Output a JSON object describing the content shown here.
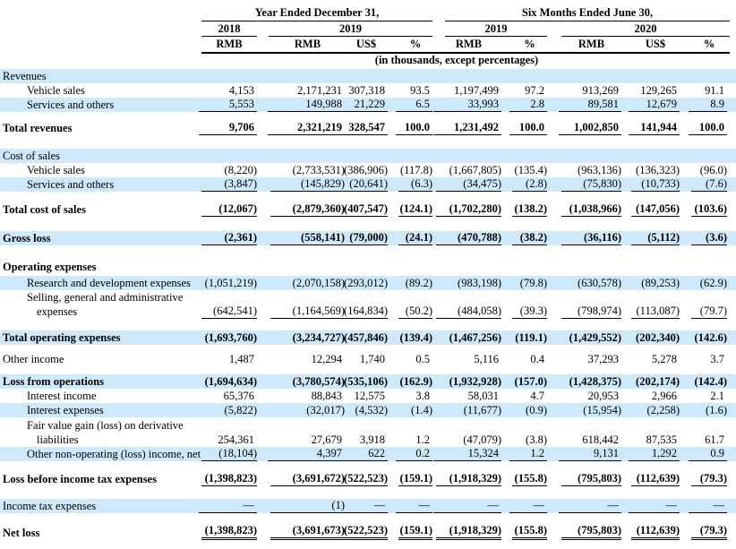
{
  "table": {
    "header": {
      "group1": "Year Ended December 31,",
      "group2": "Six Months Ended June 30,",
      "years": [
        "2018",
        "2019",
        "2019",
        "2020"
      ],
      "currencies": [
        "RMB",
        "RMB",
        "US$",
        "%",
        "RMB",
        "%",
        "RMB",
        "US$",
        "%"
      ],
      "note": "(in thousands, except percentages)"
    },
    "rows": [
      {
        "label": "Revenues",
        "indent": 0,
        "bold": false,
        "bg": "blue",
        "underline": "none",
        "gap": 0,
        "values": [
          "",
          "",
          "",
          "",
          "",
          "",
          "",
          "",
          ""
        ]
      },
      {
        "label": "Vehicle sales",
        "indent": 1,
        "bold": false,
        "bg": "white",
        "underline": "none",
        "gap": 0,
        "values": [
          "4,153",
          "2,171,231",
          "307,318",
          "93.5",
          "1,197,499",
          "97.2",
          "913,269",
          "129,265",
          "91.1"
        ]
      },
      {
        "label": "Services and others",
        "indent": 1,
        "bold": false,
        "bg": "blue",
        "underline": "single",
        "gap": 0,
        "values": [
          "5,553",
          "149,988",
          "21,229",
          "6.5",
          "33,993",
          "2.8",
          "89,581",
          "12,679",
          "8.9"
        ]
      },
      {
        "label": "Total revenues",
        "indent": 0,
        "bold": true,
        "bg": "white",
        "underline": "single",
        "gap": 10,
        "values": [
          "9,706",
          "2,321,219",
          "328,547",
          "100.0",
          "1,231,492",
          "100.0",
          "1,002,850",
          "141,944",
          "100.0"
        ]
      },
      {
        "label": "Cost of sales",
        "indent": 0,
        "bold": false,
        "bg": "blue",
        "underline": "none",
        "gap": 15,
        "values": [
          "",
          "",
          "",
          "",
          "",
          "",
          "",
          "",
          ""
        ]
      },
      {
        "label": "Vehicle sales",
        "indent": 1,
        "bold": false,
        "bg": "white",
        "underline": "none",
        "gap": 0,
        "values": [
          "(8,220)",
          "(2,733,531)",
          "(386,906)",
          "(117.8)",
          "(1,667,805)",
          "(135.4)",
          "(963,136)",
          "(136,323)",
          "(96.0)"
        ]
      },
      {
        "label": "Services and others",
        "indent": 1,
        "bold": false,
        "bg": "blue",
        "underline": "single",
        "gap": 0,
        "values": [
          "(3,847)",
          "(145,829)",
          "(20,641)",
          "(6.3)",
          "(34,475)",
          "(2.8)",
          "(75,830)",
          "(10,733)",
          "(7.6)"
        ]
      },
      {
        "label": "Total cost of sales",
        "indent": 0,
        "bold": true,
        "bg": "white",
        "underline": "single",
        "gap": 12,
        "values": [
          "(12,067)",
          "(2,879,360)",
          "(407,547)",
          "(124.1)",
          "(1,702,280)",
          "(138.2)",
          "(1,038,966)",
          "(147,056)",
          "(103.6)"
        ]
      },
      {
        "label": "Gross loss",
        "indent": 0,
        "bold": true,
        "bg": "blue",
        "underline": "single",
        "gap": 16,
        "values": [
          "(2,361)",
          "(558,141)",
          "(79,000)",
          "(24.1)",
          "(470,788)",
          "(38.2)",
          "(36,116)",
          "(5,112)",
          "(3.6)"
        ]
      },
      {
        "label": "Operating expenses",
        "indent": 0,
        "bold": true,
        "bg": "white",
        "underline": "none",
        "gap": 16,
        "values": [
          "",
          "",
          "",
          "",
          "",
          "",
          "",
          "",
          ""
        ]
      },
      {
        "label": "Research and development expenses",
        "indent": 1,
        "bold": false,
        "bg": "blue",
        "underline": "none",
        "gap": 2,
        "values": [
          "(1,051,219)",
          "(2,070,158)",
          "(293,012)",
          "(89.2)",
          "(983,198)",
          "(79.8)",
          "(630,578)",
          "(89,253)",
          "(62.9)"
        ]
      },
      {
        "label": "Selling, general and administrative",
        "label2": "expenses",
        "indent": 1,
        "bold": false,
        "bg": "white",
        "underline": "single",
        "gap": 0,
        "values": [
          "(642,541)",
          "(1,164,569)",
          "(164,834)",
          "(50.2)",
          "(484,058)",
          "(39.3)",
          "(798,974)",
          "(113,087)",
          "(79.7)"
        ]
      },
      {
        "label": "Total operating expenses",
        "indent": 0,
        "bold": true,
        "bg": "blue",
        "underline": "none",
        "gap": 13,
        "values": [
          "(1,693,760)",
          "(3,234,727)",
          "(457,846)",
          "(139.4)",
          "(1,467,256)",
          "(119.1)",
          "(1,429,552)",
          "(202,340)",
          "(142.6)"
        ]
      },
      {
        "label": "Other income",
        "indent": 0,
        "bold": false,
        "bg": "white",
        "underline": "none",
        "gap": 8,
        "values": [
          "1,487",
          "12,294",
          "1,740",
          "0.5",
          "5,116",
          "0.4",
          "37,293",
          "5,278",
          "3.7"
        ]
      },
      {
        "label": "Loss from operations",
        "indent": 0,
        "bold": true,
        "bg": "blue",
        "underline": "none",
        "gap": 9,
        "values": [
          "(1,694,634)",
          "(3,780,574)",
          "(535,106)",
          "(162.9)",
          "(1,932,928)",
          "(157.0)",
          "(1,428,375)",
          "(202,174)",
          "(142.4)"
        ]
      },
      {
        "label": "Interest income",
        "indent": 1,
        "bold": false,
        "bg": "white",
        "underline": "none",
        "gap": 0,
        "values": [
          "65,376",
          "88,843",
          "12,575",
          "3.8",
          "58,031",
          "4.7",
          "20,953",
          "2,966",
          "2.1"
        ]
      },
      {
        "label": "Interest expenses",
        "indent": 1,
        "bold": false,
        "bg": "blue",
        "underline": "none",
        "gap": 0,
        "values": [
          "(5,822)",
          "(32,017)",
          "(4,532)",
          "(1.4)",
          "(11,677)",
          "(0.9)",
          "(15,954)",
          "(2,258)",
          "(1.6)"
        ]
      },
      {
        "label": "Fair value gain (loss) on derivative",
        "label2": "liabilities",
        "indent": 1,
        "bold": false,
        "bg": "white",
        "underline": "none",
        "gap": 1,
        "values": [
          "254,361",
          "27,679",
          "3,918",
          "1.2",
          "(47,079)",
          "(3.8)",
          "618,442",
          "87,535",
          "61.7"
        ]
      },
      {
        "label": "Other non-operating (loss) income, net",
        "indent": 1,
        "bold": false,
        "bg": "blue",
        "underline": "single",
        "gap": 0,
        "values": [
          "(18,104)",
          "4,397",
          "622",
          "0.2",
          "15,324",
          "1.2",
          "9,131",
          "1,292",
          "0.9"
        ]
      },
      {
        "label": "Loss before income tax expenses",
        "indent": 0,
        "bold": true,
        "bg": "white",
        "underline": "single",
        "gap": 12,
        "values": [
          "(1,398,823)",
          "(3,691,672)",
          "(522,523)",
          "(159.1)",
          "(1,918,329)",
          "(155.8)",
          "(795,803)",
          "(112,639)",
          "(79.3)"
        ]
      },
      {
        "label": "Income tax expenses",
        "indent": 0,
        "bold": false,
        "bg": "blue",
        "underline": "single",
        "gap": 14,
        "values": [
          "—",
          "(1)",
          "—",
          "—",
          "—",
          "—",
          "—",
          "—",
          "—"
        ]
      },
      {
        "label": "Net loss",
        "indent": 0,
        "bold": true,
        "bg": "white",
        "underline": "double",
        "gap": 14,
        "values": [
          "(1,398,823)",
          "(3,691,673)",
          "(522,523)",
          "(159.1)",
          "(1,918,329)",
          "(155.8)",
          "(795,803)",
          "(112,639)",
          "(79.3)"
        ]
      }
    ]
  }
}
